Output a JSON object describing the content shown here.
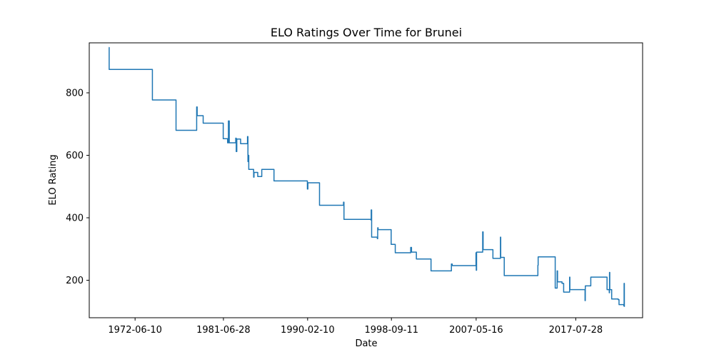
{
  "chart_data": {
    "type": "line",
    "title": "ELO Ratings Over Time for Brunei",
    "xlabel": "Date",
    "ylabel": "ELO Rating",
    "x_ticks": [
      "1972-06-10",
      "1981-06-28",
      "1990-02-10",
      "1998-09-11",
      "2007-05-16",
      "2017-07-28"
    ],
    "y_ticks": [
      200,
      400,
      600,
      800
    ],
    "xlim": [
      "1967-10-01",
      "2024-06-01"
    ],
    "ylim": [
      80,
      960
    ],
    "grid": false,
    "legend": "none",
    "series": [
      {
        "color": "#1f77b4",
        "step": true,
        "points": [
          [
            "1969-10-01",
            945
          ],
          [
            "1969-10-15",
            875
          ],
          [
            "1974-03-01",
            875
          ],
          [
            "1974-03-20",
            777
          ],
          [
            "1976-08-01",
            777
          ],
          [
            "1976-08-20",
            680
          ],
          [
            "1978-09-01",
            680
          ],
          [
            "1978-10-01",
            755
          ],
          [
            "1978-10-20",
            727
          ],
          [
            "1979-06-01",
            703
          ],
          [
            "1981-06-01",
            703
          ],
          [
            "1981-06-20",
            653
          ],
          [
            "1981-12-01",
            640
          ],
          [
            "1982-01-01",
            710
          ],
          [
            "1982-02-01",
            640
          ],
          [
            "1982-10-01",
            655
          ],
          [
            "1982-10-20",
            612
          ],
          [
            "1982-11-10",
            652
          ],
          [
            "1983-04-01",
            637
          ],
          [
            "1983-12-01",
            637
          ],
          [
            "1983-12-15",
            660
          ],
          [
            "1984-01-01",
            580
          ],
          [
            "1984-01-10",
            600
          ],
          [
            "1984-02-01",
            555
          ],
          [
            "1984-08-01",
            530
          ],
          [
            "1984-08-15",
            545
          ],
          [
            "1985-01-01",
            532
          ],
          [
            "1985-06-01",
            555
          ],
          [
            "1986-09-01",
            518
          ],
          [
            "1990-01-15",
            518
          ],
          [
            "1990-02-01",
            492
          ],
          [
            "1990-02-20",
            512
          ],
          [
            "1991-05-01",
            440
          ],
          [
            "1993-10-01",
            440
          ],
          [
            "1993-10-15",
            450
          ],
          [
            "1993-11-01",
            395
          ],
          [
            "1996-08-01",
            393
          ],
          [
            "1996-08-15",
            425
          ],
          [
            "1996-09-01",
            338
          ],
          [
            "1997-04-01",
            333
          ],
          [
            "1997-04-15",
            368
          ],
          [
            "1997-05-01",
            362
          ],
          [
            "1998-09-01",
            315
          ],
          [
            "1999-02-01",
            288
          ],
          [
            "2000-08-01",
            288
          ],
          [
            "2000-09-01",
            305
          ],
          [
            "2000-10-01",
            290
          ],
          [
            "2001-04-01",
            268
          ],
          [
            "2002-08-01",
            268
          ],
          [
            "2002-10-01",
            230
          ],
          [
            "2004-10-01",
            230
          ],
          [
            "2004-11-01",
            252
          ],
          [
            "2004-12-01",
            247
          ],
          [
            "2007-05-01",
            247
          ],
          [
            "2007-05-10",
            288
          ],
          [
            "2007-05-20",
            232
          ],
          [
            "2007-06-01",
            290
          ],
          [
            "2008-01-01",
            290
          ],
          [
            "2008-01-15",
            355
          ],
          [
            "2008-02-01",
            298
          ],
          [
            "2009-02-01",
            270
          ],
          [
            "2009-11-01",
            270
          ],
          [
            "2009-11-10",
            338
          ],
          [
            "2009-11-20",
            273
          ],
          [
            "2010-04-01",
            215
          ],
          [
            "2013-09-01",
            215
          ],
          [
            "2013-09-10",
            248
          ],
          [
            "2013-09-20",
            275
          ],
          [
            "2015-06-01",
            275
          ],
          [
            "2015-06-20",
            175
          ],
          [
            "2015-09-01",
            230
          ],
          [
            "2015-09-15",
            195
          ],
          [
            "2016-03-01",
            190
          ],
          [
            "2016-05-01",
            162
          ],
          [
            "2016-12-01",
            162
          ],
          [
            "2016-12-10",
            210
          ],
          [
            "2016-12-20",
            170
          ],
          [
            "2017-03-01",
            170
          ],
          [
            "2018-07-01",
            170
          ],
          [
            "2018-07-10",
            135
          ],
          [
            "2018-07-20",
            182
          ],
          [
            "2019-02-01",
            182
          ],
          [
            "2019-02-10",
            210
          ],
          [
            "2020-10-01",
            210
          ],
          [
            "2020-10-10",
            170
          ],
          [
            "2021-01-01",
            160
          ],
          [
            "2021-01-10",
            225
          ],
          [
            "2021-01-20",
            170
          ],
          [
            "2021-04-01",
            140
          ],
          [
            "2021-12-01",
            138
          ],
          [
            "2022-01-01",
            122
          ],
          [
            "2022-07-01",
            118
          ],
          [
            "2022-07-10",
            190
          ],
          [
            "2022-07-20",
            115
          ]
        ]
      }
    ]
  }
}
